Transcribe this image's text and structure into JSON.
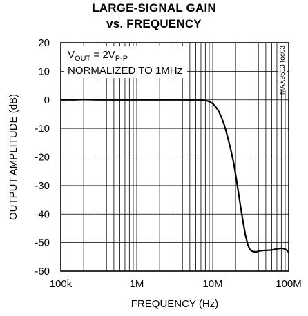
{
  "chart_data": {
    "type": "line",
    "title": "LARGE-SIGNAL GAIN",
    "subtitle": "vs. FREQUENCY",
    "xlabel": "FREQUENCY (Hz)",
    "ylabel": "OUTPUT AMPLITUDE (dB)",
    "x_scale": "log",
    "xlim": [
      100000,
      100000000
    ],
    "ylim": [
      -60,
      20
    ],
    "x_ticks": [
      100000,
      1000000,
      10000000,
      100000000
    ],
    "x_tick_labels": [
      "100k",
      "1M",
      "10M",
      "100M"
    ],
    "y_ticks": [
      20,
      10,
      0,
      -10,
      -20,
      -30,
      -40,
      -50,
      -60
    ],
    "y_tick_labels": [
      "20",
      "10",
      "0",
      "-10",
      "-20",
      "-30",
      "-40",
      "-50",
      "-60"
    ],
    "grid": true,
    "annotation": {
      "line1_prefix": "V",
      "line1_sub1": "OUT",
      "line1_mid": " = 2V",
      "line1_sub2": "P-P",
      "line2": "NORMALIZED TO 1MHz"
    },
    "figure_code": "MAX9513 toc03",
    "series": [
      {
        "color": "#000000",
        "x": [
          100000,
          150000,
          200000,
          300000,
          500000,
          700000,
          1000000,
          1500000,
          2000000,
          3000000,
          4000000,
          5000000,
          6000000,
          7000000,
          8000000,
          9000000,
          10000000,
          11000000,
          12000000,
          13000000,
          14000000,
          15000000,
          17000000,
          19000000,
          21000000,
          23000000,
          25000000,
          27000000,
          29000000,
          31000000,
          33000000,
          35000000,
          38000000,
          41000000,
          45000000,
          50000000,
          60000000,
          70000000,
          80000000,
          85000000,
          90000000,
          95000000,
          100000000
        ],
        "y": [
          0,
          0,
          0.1,
          0,
          0,
          0,
          0,
          0,
          0,
          0,
          0,
          0,
          0,
          0,
          -0.2,
          -0.6,
          -1.3,
          -2.5,
          -4.0,
          -6.0,
          -8.3,
          -11,
          -16.5,
          -22.5,
          -29.5,
          -36.5,
          -42.5,
          -47.5,
          -50.8,
          -52.5,
          -53.0,
          -53.2,
          -53.2,
          -52.9,
          -52.8,
          -52.7,
          -52.6,
          -52.2,
          -52.0,
          -52.1,
          -52.3,
          -52.7,
          -53.4
        ]
      }
    ]
  }
}
